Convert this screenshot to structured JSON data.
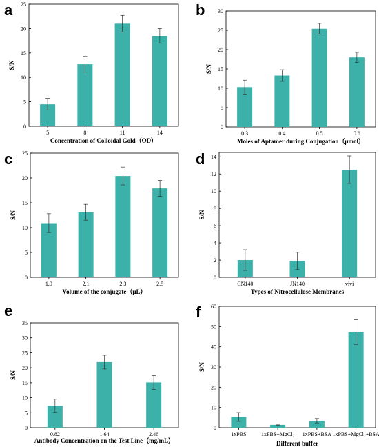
{
  "bar_color": "#3cb1a9",
  "chart_data": [
    {
      "letter": "a",
      "type": "bar",
      "categories": [
        "5",
        "8",
        "11",
        "14"
      ],
      "values": [
        4.5,
        12.7,
        21.0,
        18.5
      ],
      "errors": [
        1.2,
        1.6,
        1.7,
        1.5
      ],
      "ylim": [
        0,
        25
      ],
      "yticks": [
        "0",
        "5",
        "10",
        "15",
        "20",
        "25"
      ],
      "ylabel": "S/N",
      "xlabel": "Concentration of Colloidal Gold（OD）"
    },
    {
      "letter": "b",
      "type": "bar",
      "categories": [
        "0.3",
        "0.4",
        "0.5",
        "0.6"
      ],
      "values": [
        10.3,
        13.3,
        25.4,
        18.0
      ],
      "errors": [
        1.8,
        1.5,
        1.4,
        1.3
      ],
      "ylim": [
        0,
        30
      ],
      "yticks": [
        "0",
        "5",
        "10",
        "15",
        "20",
        "25",
        "30"
      ],
      "ylabel": "S/N",
      "xlabel": "Moles of Aptamer  during Conjugation（μmol）"
    },
    {
      "letter": "c",
      "type": "bar",
      "categories": [
        "1.9",
        "2.1",
        "2.3",
        "2.5"
      ],
      "values": [
        10.9,
        13.1,
        20.4,
        17.9
      ],
      "errors": [
        1.9,
        1.6,
        1.8,
        1.6
      ],
      "ylim": [
        0,
        25
      ],
      "yticks": [
        "0",
        "5",
        "10",
        "15",
        "20",
        "25"
      ],
      "ylabel": "S/N",
      "xlabel": "Volume of the conjugate（μL）"
    },
    {
      "letter": "d",
      "type": "bar",
      "categories": [
        "CN140",
        "JN140",
        "vivi"
      ],
      "values": [
        2.0,
        1.9,
        12.5
      ],
      "errors": [
        1.2,
        1.0,
        1.6
      ],
      "ylim": [
        0,
        14.5
      ],
      "yticks": [
        "0",
        "2",
        "4",
        "6",
        "8",
        "10",
        "12",
        "14"
      ],
      "ylabel": "S/N",
      "xlabel": "Types of Nitrocellulose Membranes"
    },
    {
      "letter": "e",
      "type": "bar",
      "categories": [
        "0.82",
        "1.64",
        "2.46"
      ],
      "values": [
        7.3,
        21.9,
        15.1
      ],
      "errors": [
        2.2,
        2.3,
        2.3
      ],
      "ylim": [
        0,
        35
      ],
      "yticks": [
        "0",
        "5",
        "10",
        "15",
        "20",
        "25",
        "30",
        "35"
      ],
      "ylabel": "S/N",
      "xlabel": "Antibody Concentration on the Test Line（mg/mL）"
    },
    {
      "letter": "f",
      "type": "bar",
      "categories": [
        "1xPBS",
        "1xPBS+MgCl₂",
        "1xPBS+BSA",
        "1xPBS+MgCl₂+BSA"
      ],
      "values": [
        5.3,
        1.4,
        3.4,
        47.2
      ],
      "errors": [
        2.2,
        0.3,
        1.1,
        6.2
      ],
      "ylim": [
        0,
        60
      ],
      "yticks": [
        "0",
        "10",
        "20",
        "30",
        "40",
        "50",
        "60"
      ],
      "ylabel": "S/N",
      "xlabel": "Different buffer"
    }
  ]
}
